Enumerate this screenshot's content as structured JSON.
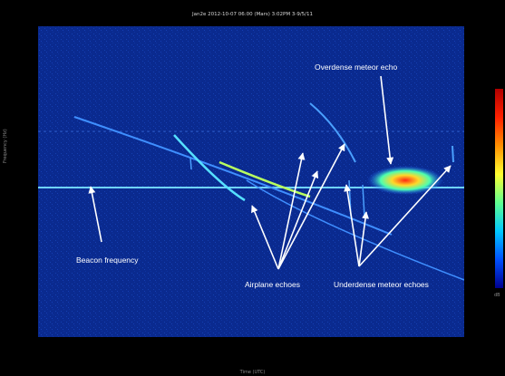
{
  "window": {
    "title": "Jan2e 2012-10-07 06:00 (Mars) 3:02PM 3-9/5/11"
  },
  "axes": {
    "ylabel": "Frequency (Hz)",
    "xlabel": "Time (UTC)",
    "colorbar_label": "dB"
  },
  "annotations": {
    "overdense": "Overdense meteor echo",
    "beacon": "Beacon frequency",
    "airplane": "Airplane echoes",
    "underdense": "Underdense meteor echoes"
  },
  "colors": {
    "background": "#0a2a8f",
    "beacon_line": "#6fd3ff",
    "annotation_text": "#ffffff"
  }
}
